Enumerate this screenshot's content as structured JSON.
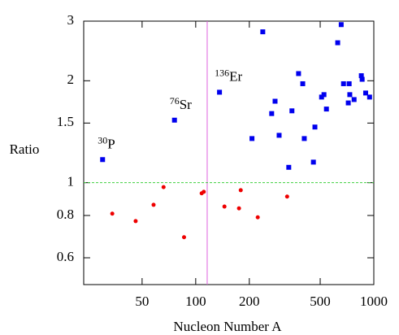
{
  "chart_data": {
    "type": "scatter",
    "x_label": "Nucleon Number A",
    "y_label": "Ratio",
    "xlog": true,
    "ylog": true,
    "xlim": [
      23.5,
      1000
    ],
    "ylim": [
      0.5,
      3
    ],
    "xticks": [
      50,
      100,
      200,
      500,
      1000
    ],
    "yticks": [
      0.6,
      0.8,
      1,
      1.5,
      2,
      3
    ],
    "vline": {
      "value": 116,
      "color": "#e060e0"
    },
    "hline": {
      "value": 1,
      "color": "#40d040"
    },
    "series": [
      {
        "color": "#0000ee",
        "marker": "square",
        "x": [
          30,
          76,
          136,
          238,
          207,
          267,
          279,
          294,
          333,
          347,
          378,
          399,
          407,
          458,
          467,
          509,
          525,
          542,
          627,
          656,
          676,
          719,
          727,
          733,
          775,
          851,
          860,
          900,
          947
        ],
        "values": [
          1.17,
          1.53,
          1.85,
          2.79,
          1.35,
          1.6,
          1.74,
          1.38,
          1.11,
          1.63,
          2.1,
          1.96,
          1.35,
          1.15,
          1.46,
          1.79,
          1.82,
          1.65,
          2.59,
          2.93,
          1.96,
          1.72,
          1.96,
          1.82,
          1.76,
          2.07,
          2.02,
          1.84,
          1.79
        ],
        "labels": [
          {
            "mass": "30",
            "symbol": "P"
          },
          {
            "mass": "76",
            "symbol": "Sr"
          },
          {
            "mass": "136",
            "symbol": "Er"
          },
          null,
          null,
          null,
          null,
          null,
          null,
          null,
          null,
          null,
          null,
          null,
          null,
          null,
          null,
          null,
          null,
          null,
          null,
          null,
          null,
          null,
          null,
          null,
          null,
          null,
          null
        ]
      },
      {
        "color": "#ee0000",
        "marker": "circle",
        "x": [
          34,
          46,
          58,
          66,
          86,
          108,
          111,
          145,
          175,
          179,
          223,
          326
        ],
        "values": [
          0.81,
          0.77,
          0.86,
          0.97,
          0.69,
          0.93,
          0.94,
          0.85,
          0.84,
          0.95,
          0.79,
          0.91
        ]
      }
    ]
  }
}
